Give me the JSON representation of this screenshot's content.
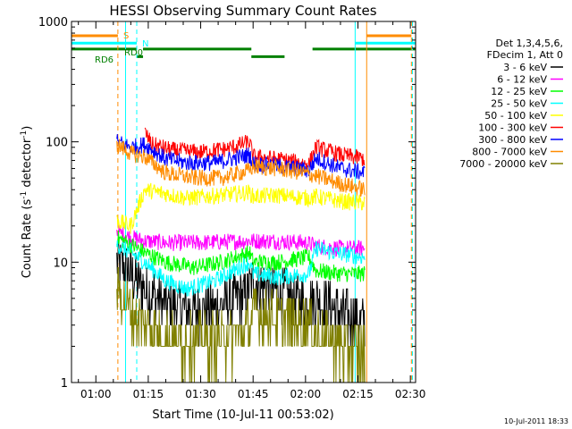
{
  "chart_data": {
    "type": "line",
    "title": "HESSI Observing Summary Count Rates",
    "xlabel": "Start Time (10-Jul-11 00:53:02)",
    "ylabel_main": "Count Rate (s",
    "ylabel_sup1": "-1",
    "ylabel_mid": " detector",
    "ylabel_sup2": "-1",
    "ylabel_end": ")",
    "y_scale": "log",
    "ylim": [
      1,
      1000
    ],
    "xlim_minutes": [
      53.03,
      151.5
    ],
    "xtick_labels": [
      {
        "label": "01:00",
        "t": 60
      },
      {
        "label": "01:15",
        "t": 75
      },
      {
        "label": "01:30",
        "t": 90
      },
      {
        "label": "01:45",
        "t": 105
      },
      {
        "label": "02:00",
        "t": 120
      },
      {
        "label": "02:15",
        "t": 135
      },
      {
        "label": "02:30",
        "t": 150
      }
    ],
    "ytick_labels": [
      {
        "label": "1",
        "v": 1
      },
      {
        "label": "10",
        "v": 10
      },
      {
        "label": "100",
        "v": 100
      },
      {
        "label": "1000",
        "v": 1000
      }
    ],
    "legend_header": [
      "Det 1,3,4,5,6,",
      "FDecim 1, Att 0"
    ],
    "legend_position": "right",
    "series": [
      {
        "name": "3 - 6 keV",
        "color": "#000000",
        "points": [
          [
            66,
            10
          ],
          [
            70,
            8
          ],
          [
            74,
            6
          ],
          [
            80,
            4.5
          ],
          [
            88,
            4
          ],
          [
            96,
            4.5
          ],
          [
            103,
            5.3
          ],
          [
            105,
            7
          ],
          [
            110,
            6
          ],
          [
            116,
            5
          ],
          [
            121,
            4.5
          ],
          [
            123,
            5
          ],
          [
            128,
            4
          ],
          [
            134,
            3.5
          ],
          [
            137,
            3.2
          ]
        ]
      },
      {
        "name": "6 - 12 keV",
        "color": "#ff00ff",
        "points": [
          [
            66,
            18
          ],
          [
            70,
            16
          ],
          [
            74,
            15
          ],
          [
            80,
            14.5
          ],
          [
            90,
            14.5
          ],
          [
            98,
            14.8
          ],
          [
            104,
            15
          ],
          [
            110,
            15
          ],
          [
            120,
            14.5
          ],
          [
            124,
            13.5
          ],
          [
            130,
            13
          ],
          [
            137,
            13
          ]
        ]
      },
      {
        "name": "12 - 25 keV",
        "color": "#00ff00",
        "points": [
          [
            66,
            16
          ],
          [
            70,
            14
          ],
          [
            74,
            12
          ],
          [
            80,
            10
          ],
          [
            88,
            9
          ],
          [
            96,
            10
          ],
          [
            104,
            12
          ],
          [
            105,
            10
          ],
          [
            112,
            10
          ],
          [
            121,
            11
          ],
          [
            123,
            8.5
          ],
          [
            130,
            8
          ],
          [
            137,
            8
          ]
        ]
      },
      {
        "name": "25 - 50 keV",
        "color": "#00ffff",
        "points": [
          [
            66,
            14
          ],
          [
            70,
            12
          ],
          [
            74,
            10
          ],
          [
            80,
            7
          ],
          [
            86,
            6
          ],
          [
            94,
            7
          ],
          [
            104,
            10
          ],
          [
            105,
            8
          ],
          [
            112,
            7.5
          ],
          [
            121,
            8
          ],
          [
            123,
            13
          ],
          [
            128,
            12
          ],
          [
            137,
            11
          ]
        ]
      },
      {
        "name": "50 - 100 keV",
        "color": "#ffff00",
        "points": [
          [
            66,
            22
          ],
          [
            70,
            20
          ],
          [
            74,
            40
          ],
          [
            78,
            38
          ],
          [
            86,
            34
          ],
          [
            96,
            36
          ],
          [
            104,
            38
          ],
          [
            105,
            35
          ],
          [
            112,
            36
          ],
          [
            121,
            34
          ],
          [
            123,
            35
          ],
          [
            130,
            32
          ],
          [
            137,
            31
          ]
        ]
      },
      {
        "name": "100 - 300 keV",
        "color": "#ff0000",
        "points": [
          [
            74,
            120
          ],
          [
            76,
            95
          ],
          [
            82,
            85
          ],
          [
            90,
            82
          ],
          [
            98,
            88
          ],
          [
            104,
            100
          ],
          [
            105,
            75
          ],
          [
            112,
            72
          ],
          [
            121,
            65
          ],
          [
            123,
            90
          ],
          [
            130,
            78
          ],
          [
            137,
            72
          ]
        ]
      },
      {
        "name": "300 - 800 keV",
        "color": "#0000ff",
        "points": [
          [
            66,
            100
          ],
          [
            70,
            90
          ],
          [
            74,
            95
          ],
          [
            80,
            72
          ],
          [
            86,
            67
          ],
          [
            94,
            67
          ],
          [
            104,
            78
          ],
          [
            105,
            66
          ],
          [
            112,
            63
          ],
          [
            121,
            58
          ],
          [
            123,
            73
          ],
          [
            130,
            60
          ],
          [
            137,
            55
          ]
        ]
      },
      {
        "name": "800 - 7000 keV",
        "color": "#ff8c00",
        "points": [
          [
            66,
            95
          ],
          [
            70,
            80
          ],
          [
            74,
            75
          ],
          [
            80,
            55
          ],
          [
            88,
            50
          ],
          [
            96,
            50
          ],
          [
            104,
            58
          ],
          [
            105,
            62
          ],
          [
            112,
            60
          ],
          [
            121,
            54
          ],
          [
            123,
            52
          ],
          [
            130,
            45
          ],
          [
            137,
            40
          ]
        ]
      },
      {
        "name": "7000 - 20000 keV",
        "color": "#808000",
        "points": [
          [
            66,
            6
          ],
          [
            70,
            4
          ],
          [
            74,
            3
          ],
          [
            78,
            2.5
          ],
          [
            84,
            2.2
          ],
          [
            92,
            2.2
          ],
          [
            100,
            2.4
          ],
          [
            104,
            3
          ],
          [
            105,
            4
          ],
          [
            112,
            3.5
          ],
          [
            121,
            3
          ],
          [
            123,
            2.5
          ],
          [
            130,
            2
          ],
          [
            137,
            1.8
          ]
        ]
      }
    ],
    "annotations": [
      {
        "label": "S",
        "color": "#ff8c00"
      },
      {
        "label": "N",
        "color": "#00ffff"
      },
      {
        "label": "RD0",
        "color": "#008000"
      },
      {
        "label": "RD6",
        "color": "#008000"
      }
    ],
    "vertical_markers": [
      {
        "t": 53.03,
        "color": "#00ffff",
        "style": "solid"
      },
      {
        "t": 66.3,
        "color": "#ff8c00",
        "style": "dashed"
      },
      {
        "t": 68.5,
        "color": "#00ffff",
        "style": "solid"
      },
      {
        "t": 71.7,
        "color": "#00ffff",
        "style": "dashed"
      },
      {
        "t": 134.2,
        "color": "#00ffff",
        "style": "solid"
      },
      {
        "t": 137.5,
        "color": "#ff8c00",
        "style": "solid"
      },
      {
        "t": 150.3,
        "color": "#ff8c00",
        "style": "dashed"
      },
      {
        "t": 150.6,
        "color": "#00ffff",
        "style": "dashed"
      }
    ],
    "flag_bars": [
      {
        "name": "S",
        "color": "#ff8c00",
        "v": 760,
        "spans": [
          [
            53.03,
            66.3
          ],
          [
            137.5,
            150.3
          ]
        ]
      },
      {
        "name": "N",
        "color": "#00ffff",
        "v": 660,
        "spans": [
          [
            53.03,
            71.7
          ],
          [
            134.2,
            151.5
          ]
        ]
      },
      {
        "name": "RD",
        "color": "#008000",
        "v": 590,
        "spans": [
          [
            53.03,
            71.7
          ],
          [
            73.5,
            104.5
          ],
          [
            122,
            151.5
          ]
        ]
      },
      {
        "name": "RD6",
        "color": "#008000",
        "v": 510,
        "spans": [
          [
            71.7,
            73.5
          ],
          [
            104.5,
            114
          ]
        ]
      }
    ]
  },
  "footer": {
    "timestamp": "10-Jul-2011 18:33"
  }
}
